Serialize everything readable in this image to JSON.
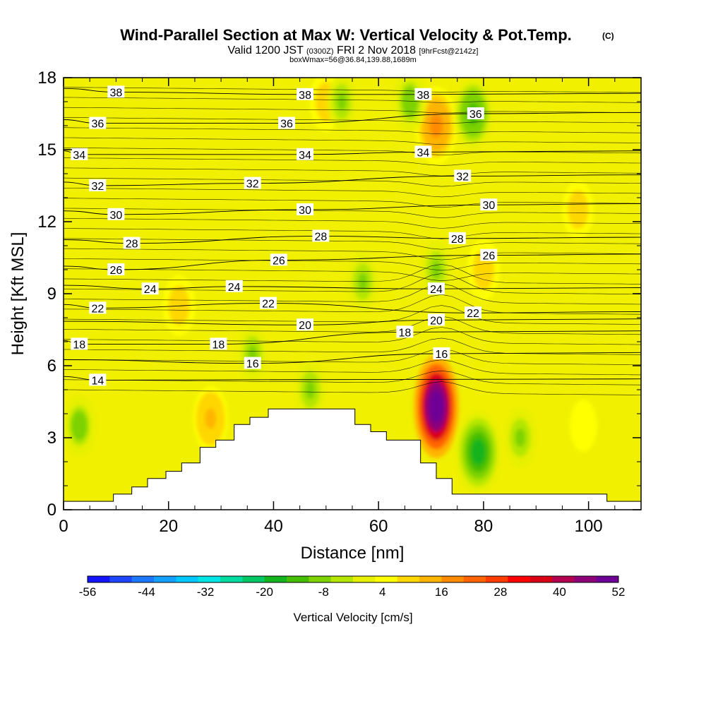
{
  "chart_data": {
    "type": "heatmap",
    "title": "Wind-Parallel Section at Max W: Vertical Velocity & Pot.Temp.",
    "title_suffix": "(C)",
    "subtitle_main": "Valid 1200 JST",
    "subtitle_z": "(0300Z)",
    "subtitle_date": "FRI 2 Nov 2018",
    "subtitle_fcst": "[9hrFcst@2142z]",
    "subtitle2": "boxWmax=56@36.84,139.88,1689m",
    "xlabel": "Distance [nm]",
    "ylabel": "Height [Kft MSL]",
    "xlim": [
      0,
      110
    ],
    "ylim": [
      0,
      18
    ],
    "x_ticks": [
      "0",
      "20",
      "40",
      "60",
      "80",
      "100"
    ],
    "x_tick_values": [
      0,
      20,
      40,
      60,
      80,
      100
    ],
    "y_ticks": [
      "0",
      "3",
      "6",
      "9",
      "12",
      "15",
      "18"
    ],
    "y_tick_values": [
      0,
      3,
      6,
      9,
      12,
      15,
      18
    ],
    "colorbar": {
      "label": "Vertical Velocity [cm/s]",
      "tick_labels": [
        "-56",
        "-44",
        "-32",
        "-20",
        "-8",
        "4",
        "16",
        "28",
        "40",
        "52"
      ],
      "min": -56,
      "max": 52,
      "colors": [
        "#1414ff",
        "#1e46ff",
        "#1e78ff",
        "#14a0ff",
        "#00c8ff",
        "#00e6e6",
        "#00dca0",
        "#00c864",
        "#14b41e",
        "#46be00",
        "#7dd200",
        "#b4e600",
        "#e6f000",
        "#ffff00",
        "#ffd700",
        "#ffb400",
        "#ff8c00",
        "#ff6400",
        "#ff3c00",
        "#ff0000",
        "#dc0014",
        "#b40050",
        "#8c0078",
        "#6e0096"
      ]
    },
    "w_features": [
      {
        "sign": "up",
        "x": 71,
        "y": 4.3,
        "peak": 56
      },
      {
        "sign": "up",
        "x": 22,
        "y": 8.5,
        "peak": 10
      },
      {
        "sign": "up",
        "x": 28,
        "y": 3.8,
        "peak": 12
      },
      {
        "sign": "up",
        "x": 50,
        "y": 17,
        "peak": 10
      },
      {
        "sign": "up",
        "x": 71,
        "y": 16,
        "peak": 18
      },
      {
        "sign": "up",
        "x": 80,
        "y": 10,
        "peak": 10
      },
      {
        "sign": "up",
        "x": 98,
        "y": 12.5,
        "peak": 9
      },
      {
        "sign": "up",
        "x": 99,
        "y": 3.5,
        "peak": 6
      },
      {
        "sign": "down",
        "x": 79,
        "y": 2.4,
        "peak": -20
      },
      {
        "sign": "down",
        "x": 78,
        "y": 16.5,
        "peak": -14
      },
      {
        "sign": "down",
        "x": 66,
        "y": 17,
        "peak": -10
      },
      {
        "sign": "down",
        "x": 3,
        "y": 3.5,
        "peak": -10
      },
      {
        "sign": "down",
        "x": 57,
        "y": 9.5,
        "peak": -8
      },
      {
        "sign": "down",
        "x": 47,
        "y": 5,
        "peak": -8
      },
      {
        "sign": "down",
        "x": 36,
        "y": 6.5,
        "peak": -7
      },
      {
        "sign": "down",
        "x": 53,
        "y": 17,
        "peak": -7
      },
      {
        "sign": "down",
        "x": 87,
        "y": 3,
        "peak": -9
      },
      {
        "sign": "down",
        "x": 71,
        "y": 10,
        "peak": -8
      }
    ],
    "theta_contour_labels": [
      {
        "text": "38",
        "x": 10,
        "y": 17.4
      },
      {
        "text": "38",
        "x": 46,
        "y": 17.3
      },
      {
        "text": "38",
        "x": 68.5,
        "y": 17.3
      },
      {
        "text": "36",
        "x": 6.5,
        "y": 16.1
      },
      {
        "text": "36",
        "x": 42.5,
        "y": 16.1
      },
      {
        "text": "36",
        "x": 78.5,
        "y": 16.5
      },
      {
        "text": "34",
        "x": 3,
        "y": 14.8
      },
      {
        "text": "34",
        "x": 46,
        "y": 14.8
      },
      {
        "text": "34",
        "x": 68.5,
        "y": 14.9
      },
      {
        "text": "32",
        "x": 6.5,
        "y": 13.5
      },
      {
        "text": "32",
        "x": 36,
        "y": 13.6
      },
      {
        "text": "32",
        "x": 76,
        "y": 13.9
      },
      {
        "text": "30",
        "x": 10,
        "y": 12.3
      },
      {
        "text": "30",
        "x": 46,
        "y": 12.5
      },
      {
        "text": "30",
        "x": 81,
        "y": 12.7
      },
      {
        "text": "28",
        "x": 13,
        "y": 11.1
      },
      {
        "text": "28",
        "x": 49,
        "y": 11.4
      },
      {
        "text": "28",
        "x": 75,
        "y": 11.3
      },
      {
        "text": "26",
        "x": 10,
        "y": 10
      },
      {
        "text": "26",
        "x": 41,
        "y": 10.4
      },
      {
        "text": "26",
        "x": 81,
        "y": 10.6
      },
      {
        "text": "24",
        "x": 16.5,
        "y": 9.2
      },
      {
        "text": "24",
        "x": 32.5,
        "y": 9.3
      },
      {
        "text": "24",
        "x": 71,
        "y": 9.2
      },
      {
        "text": "22",
        "x": 6.5,
        "y": 8.4
      },
      {
        "text": "22",
        "x": 39,
        "y": 8.6
      },
      {
        "text": "22",
        "x": 78,
        "y": 8.2
      },
      {
        "text": "20",
        "x": 46,
        "y": 7.7
      },
      {
        "text": "20",
        "x": 71,
        "y": 7.9
      },
      {
        "text": "18",
        "x": 3,
        "y": 6.9
      },
      {
        "text": "18",
        "x": 29.5,
        "y": 6.9
      },
      {
        "text": "18",
        "x": 65,
        "y": 7.4
      },
      {
        "text": "16",
        "x": 36,
        "y": 6.1
      },
      {
        "text": "16",
        "x": 72,
        "y": 6.5
      },
      {
        "text": "14",
        "x": 6.5,
        "y": 5.4
      }
    ],
    "terrain": [
      [
        0,
        0.35
      ],
      [
        9.5,
        0.35
      ],
      [
        9.5,
        0.65
      ],
      [
        13,
        0.65
      ],
      [
        13,
        0.95
      ],
      [
        16,
        0.95
      ],
      [
        16,
        1.3
      ],
      [
        19.5,
        1.3
      ],
      [
        19.5,
        1.6
      ],
      [
        22.5,
        1.6
      ],
      [
        22.5,
        1.95
      ],
      [
        26,
        1.95
      ],
      [
        26,
        2.6
      ],
      [
        29,
        2.6
      ],
      [
        29,
        2.9
      ],
      [
        32.5,
        2.9
      ],
      [
        32.5,
        3.55
      ],
      [
        35.5,
        3.55
      ],
      [
        35.5,
        3.85
      ],
      [
        39,
        3.85
      ],
      [
        39,
        4.2
      ],
      [
        55.5,
        4.2
      ],
      [
        55.5,
        3.55
      ],
      [
        58.5,
        3.55
      ],
      [
        58.5,
        3.25
      ],
      [
        61.5,
        3.25
      ],
      [
        61.5,
        2.9
      ],
      [
        68,
        2.9
      ],
      [
        68,
        1.95
      ],
      [
        71,
        1.95
      ],
      [
        71,
        1.3
      ],
      [
        74,
        1.3
      ],
      [
        74,
        0.65
      ],
      [
        103.5,
        0.65
      ],
      [
        103.5,
        0.35
      ],
      [
        110,
        0.35
      ]
    ]
  }
}
